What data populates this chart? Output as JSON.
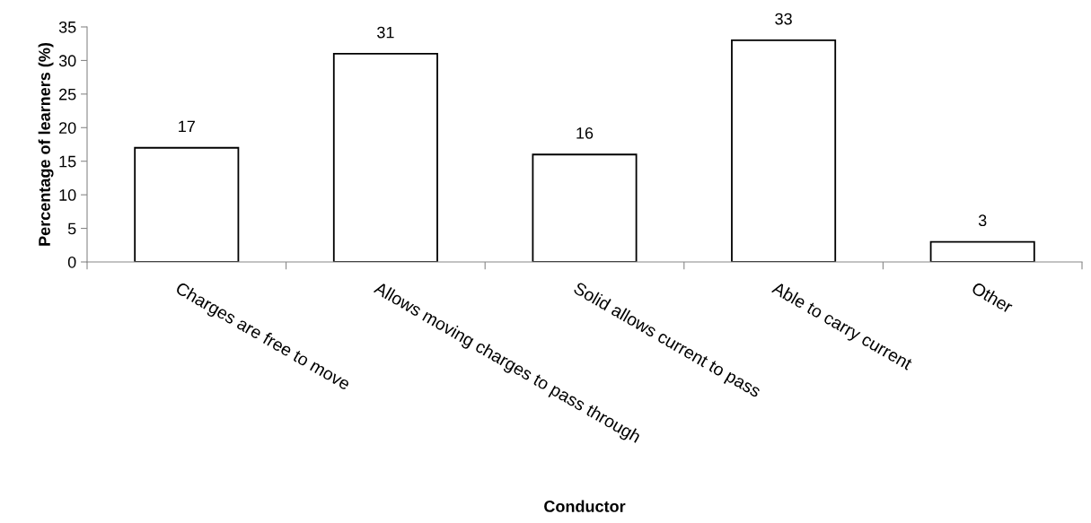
{
  "chart_data": {
    "type": "bar",
    "categories": [
      "Charges are free to move",
      "Allows moving charges to pass through",
      "Solid allows current to pass",
      "Able to carry current",
      "Other"
    ],
    "values": [
      17,
      31,
      16,
      33,
      3
    ],
    "color": "#ffffff",
    "xlabel": "Conductor",
    "ylabel": "Percentage of learners (%)",
    "ylim": [
      0,
      35
    ],
    "yticks": [
      0,
      5,
      10,
      15,
      20,
      25,
      30,
      35
    ],
    "data_labels": true,
    "grid": false,
    "legend": false
  }
}
